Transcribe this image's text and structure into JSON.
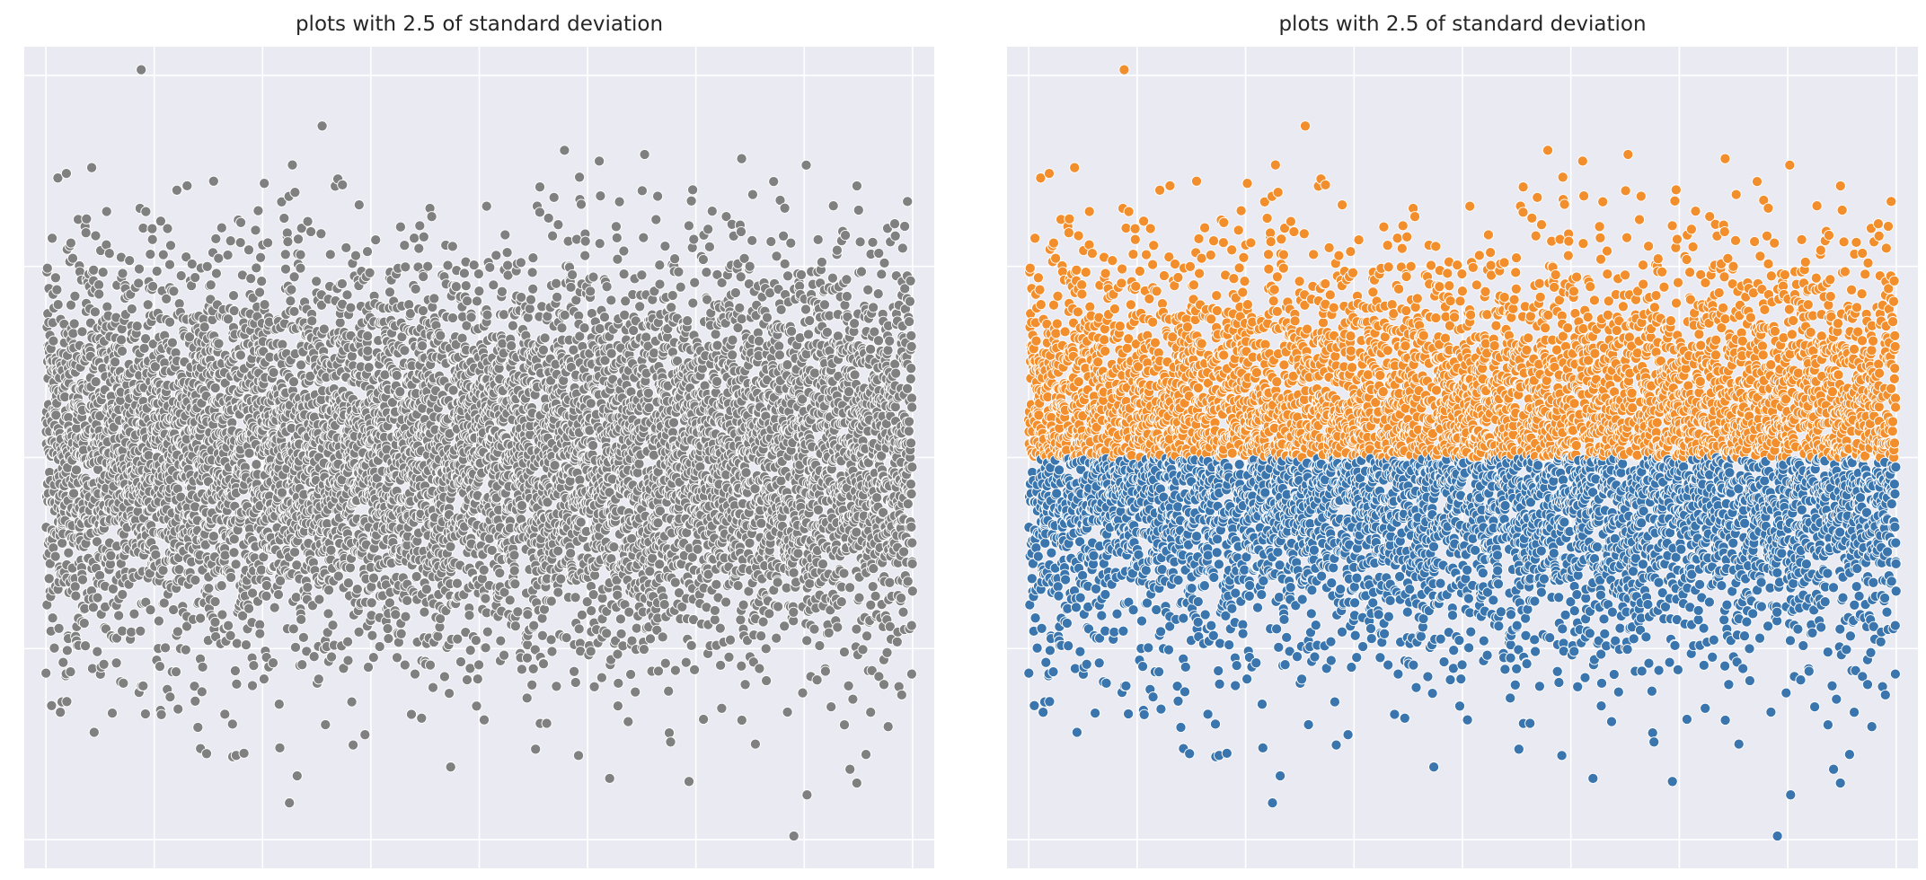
{
  "chart_data": [
    {
      "type": "scatter",
      "title": "plots with 2.5 of standard deviation",
      "xlabel": "",
      "ylabel": "",
      "xlim": [
        -200,
        8200
      ],
      "ylim": [
        -4.3,
        4.3
      ],
      "grid": true,
      "n_points": 8000,
      "distribution": "normal",
      "series": [
        {
          "color": "#808080",
          "y_min": -4.3,
          "y_max": 4.3
        }
      ]
    },
    {
      "type": "scatter",
      "title": "plots with 2.5 of standard deviation",
      "xlabel": "",
      "ylabel": "",
      "xlim": [
        -200,
        8200
      ],
      "ylim": [
        -4.3,
        4.3
      ],
      "grid": true,
      "n_points": 8000,
      "distribution": "normal",
      "series": [
        {
          "color": "#f28e2c",
          "y_min": 0,
          "y_max": 4.3
        },
        {
          "color": "#3a75ae",
          "y_min": -4.3,
          "y_max": 0
        }
      ]
    }
  ]
}
